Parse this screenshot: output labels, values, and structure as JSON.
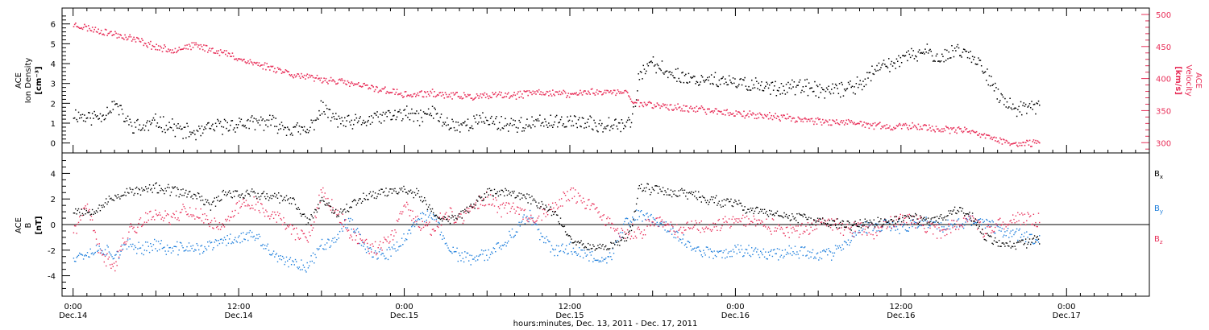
{
  "chart_data": {
    "type": "scatter",
    "title": "",
    "xlabel": "hours:minutes, Dec. 13, 2011 - Dec. 17, 2011",
    "x_range_hours_since_dec14_0000": [
      -0.8,
      78.0
    ],
    "x_ticks": [
      {
        "hour": 0,
        "time": "0:00",
        "date": "Dec.14"
      },
      {
        "hour": 12,
        "time": "12:00",
        "date": "Dec.14"
      },
      {
        "hour": 24,
        "time": "0:00",
        "date": "Dec.15"
      },
      {
        "hour": 36,
        "time": "12:00",
        "date": "Dec.15"
      },
      {
        "hour": 48,
        "time": "0:00",
        "date": "Dec.16"
      },
      {
        "hour": 60,
        "time": "12:00",
        "date": "Dec.16"
      },
      {
        "hour": 72,
        "time": "0:00",
        "date": "Dec.17"
      }
    ],
    "panels": [
      {
        "name": "density-velocity",
        "ylabel_left": [
          "ACE",
          "Ion Density",
          "[cm⁻³]"
        ],
        "ylim_left": [
          -0.5,
          6.8
        ],
        "yticks_left": [
          "0",
          "1",
          "2",
          "3",
          "4",
          "5",
          "6"
        ],
        "ylabel_right": [
          "ACE",
          "Velocity",
          "[km/s]"
        ],
        "ylim_right": [
          284,
          510
        ],
        "yticks_right": [
          "300",
          "350",
          "400",
          "450",
          "500"
        ],
        "right_axis_color": "#e8305a",
        "series": [
          {
            "axis": "left",
            "color": "#000000",
            "x": [
              0,
              1,
              2,
              3,
              4,
              5,
              6,
              7,
              8,
              9,
              10,
              11,
              12,
              13,
              14,
              15,
              16,
              17,
              18,
              19,
              20,
              21,
              22,
              23,
              24,
              25,
              26,
              27,
              28,
              29,
              30,
              31,
              32,
              33,
              34,
              35,
              36,
              37,
              38,
              39,
              40,
              40.5,
              41,
              42,
              43,
              44,
              45,
              46,
              47,
              48,
              49,
              50,
              51,
              52,
              53,
              54,
              55,
              56,
              57,
              58,
              59,
              60,
              61,
              62,
              63,
              64,
              65,
              66,
              67,
              68,
              69,
              70
            ],
            "y": [
              1.5,
              1.3,
              1.4,
              2.0,
              1.0,
              0.8,
              1.1,
              0.9,
              0.6,
              0.5,
              0.8,
              0.9,
              1.0,
              1.0,
              1.1,
              0.9,
              0.7,
              0.6,
              1.8,
              1.2,
              1.0,
              1.1,
              1.3,
              1.4,
              1.5,
              1.3,
              1.6,
              1.0,
              0.9,
              1.1,
              1.2,
              1.0,
              1.0,
              0.9,
              1.1,
              1.0,
              1.2,
              1.0,
              0.9,
              1.1,
              1.0,
              1.2,
              3.5,
              4.0,
              3.6,
              3.4,
              3.2,
              3.3,
              3.1,
              3.0,
              3.0,
              2.9,
              2.8,
              2.9,
              2.8,
              2.7,
              2.6,
              2.8,
              3.0,
              3.6,
              4.0,
              4.2,
              4.5,
              4.6,
              4.3,
              4.8,
              4.4,
              3.8,
              2.4,
              1.8,
              1.7,
              1.9
            ]
          },
          {
            "axis": "right",
            "color": "#e8305a",
            "x": [
              0,
              1,
              2,
              3,
              4,
              5,
              6,
              7,
              8,
              9,
              10,
              11,
              12,
              13,
              14,
              15,
              16,
              17,
              18,
              19,
              20,
              21,
              22,
              23,
              24,
              25,
              26,
              27,
              28,
              29,
              30,
              31,
              32,
              33,
              34,
              35,
              36,
              37,
              38,
              39,
              40,
              40.5,
              41,
              42,
              43,
              44,
              45,
              46,
              47,
              48,
              49,
              50,
              51,
              52,
              53,
              54,
              55,
              56,
              57,
              58,
              59,
              60,
              61,
              62,
              63,
              64,
              65,
              66,
              67,
              68,
              69,
              70
            ],
            "y": [
              485,
              480,
              475,
              470,
              465,
              458,
              450,
              445,
              450,
              452,
              446,
              440,
              432,
              425,
              420,
              414,
              407,
              402,
              400,
              397,
              393,
              389,
              385,
              381,
              375,
              376,
              378,
              375,
              374,
              372,
              373,
              375,
              374,
              378,
              380,
              378,
              376,
              379,
              381,
              379,
              380,
              366,
              363,
              360,
              357,
              355,
              353,
              351,
              349,
              347,
              345,
              343,
              341,
              339,
              337,
              335,
              333,
              331,
              330,
              328,
              326,
              325,
              327,
              324,
              322,
              320,
              318,
              312,
              305,
              300,
              298,
              302
            ]
          }
        ]
      },
      {
        "name": "magnetic-field",
        "ylabel_left": [
          "ACE",
          "B",
          "[nT]"
        ],
        "ylim_left": [
          -5.6,
          5.6
        ],
        "yticks_left": [
          "-4",
          "-2",
          "0",
          "2",
          "4"
        ],
        "series": [
          {
            "name": "Bx",
            "label_main": "B",
            "label_sub": "x",
            "color": "#000000",
            "x": [
              0,
              1,
              2,
              3,
              4,
              5,
              6,
              7,
              8,
              9,
              10,
              11,
              12,
              13,
              14,
              15,
              16,
              17,
              18,
              19,
              20,
              21,
              22,
              23,
              24,
              25,
              26,
              27,
              28,
              29,
              30,
              31,
              32,
              33,
              34,
              35,
              36,
              37,
              38,
              39,
              40,
              40.5,
              41,
              42,
              43,
              44,
              45,
              46,
              47,
              48,
              49,
              50,
              51,
              52,
              53,
              54,
              55,
              56,
              57,
              58,
              59,
              60,
              61,
              62,
              63,
              64,
              65,
              66,
              67,
              68,
              69,
              70
            ],
            "y": [
              1.2,
              1.0,
              1.5,
              2.2,
              2.6,
              2.7,
              2.9,
              2.7,
              2.5,
              2.2,
              1.5,
              2.6,
              2.4,
              2.5,
              2.2,
              2.1,
              1.8,
              0.2,
              2.0,
              1.0,
              1.4,
              2.2,
              2.5,
              2.6,
              2.8,
              2.4,
              1.0,
              0.3,
              0.8,
              1.5,
              2.6,
              2.5,
              2.4,
              2.1,
              1.5,
              0.8,
              -1.0,
              -1.5,
              -1.8,
              -1.6,
              -1.0,
              0.0,
              2.9,
              2.8,
              2.7,
              2.5,
              2.3,
              2.0,
              1.8,
              1.6,
              1.2,
              1.0,
              0.9,
              0.6,
              0.5,
              0.3,
              0.1,
              0.0,
              0.1,
              0.2,
              0.3,
              0.4,
              0.5,
              0.4,
              0.6,
              1.2,
              0.8,
              -0.8,
              -1.5,
              -1.6,
              -1.4,
              -1.2
            ]
          },
          {
            "name": "By",
            "label_main": "B",
            "label_sub": "y",
            "color": "#1f7fdc",
            "x": [
              0,
              1,
              2,
              3,
              4,
              5,
              6,
              7,
              8,
              9,
              10,
              11,
              12,
              13,
              14,
              15,
              16,
              17,
              18,
              19,
              20,
              21,
              22,
              23,
              24,
              25,
              26,
              27,
              28,
              29,
              30,
              31,
              32,
              33,
              34,
              35,
              36,
              37,
              38,
              39,
              40,
              40.5,
              41,
              42,
              43,
              44,
              45,
              46,
              47,
              48,
              49,
              50,
              51,
              52,
              53,
              54,
              55,
              56,
              57,
              58,
              59,
              60,
              61,
              62,
              63,
              64,
              65,
              66,
              67,
              68,
              69,
              70
            ],
            "y": [
              -2.4,
              -2.2,
              -1.8,
              -2.3,
              -1.6,
              -1.8,
              -1.5,
              -2.0,
              -1.7,
              -1.9,
              -1.6,
              -1.2,
              -1.0,
              -0.8,
              -1.8,
              -2.8,
              -3.0,
              -3.2,
              -1.5,
              -1.0,
              0.5,
              -1.5,
              -2.5,
              -2.2,
              -1.0,
              0.3,
              1.0,
              -1.5,
              -2.5,
              -2.7,
              -2.3,
              -1.5,
              -0.5,
              0.8,
              -1.2,
              -2.0,
              -1.8,
              -2.2,
              -2.6,
              -2.4,
              0.2,
              0.5,
              0.8,
              0.5,
              -0.2,
              -1.0,
              -2.0,
              -2.1,
              -2.2,
              -2.0,
              -2.0,
              -2.1,
              -2.2,
              -2.0,
              -2.1,
              -2.3,
              -2.2,
              -1.5,
              -0.3,
              -0.2,
              0.0,
              -0.3,
              0.0,
              0.3,
              -0.2,
              0.0,
              0.4,
              0.2,
              -0.3,
              -0.6,
              -0.9,
              -1.0
            ]
          },
          {
            "name": "Bz",
            "label_main": "B",
            "label_sub": "z",
            "color": "#e8305a",
            "x": [
              0,
              1,
              2,
              3,
              4,
              5,
              6,
              7,
              8,
              9,
              10,
              11,
              12,
              13,
              14,
              15,
              16,
              17,
              18,
              19,
              20,
              21,
              22,
              23,
              24,
              25,
              26,
              27,
              28,
              29,
              30,
              31,
              32,
              33,
              34,
              35,
              36,
              37,
              38,
              39,
              40,
              40.5,
              41,
              42,
              43,
              44,
              45,
              46,
              47,
              48,
              49,
              50,
              51,
              52,
              53,
              54,
              55,
              56,
              57,
              58,
              59,
              60,
              61,
              62,
              63,
              64,
              65,
              66,
              67,
              68,
              69,
              70
            ],
            "y": [
              -0.5,
              1.5,
              -2.5,
              -3.0,
              -0.5,
              0.3,
              1.0,
              0.5,
              1.2,
              0.8,
              0.2,
              0.0,
              1.5,
              1.8,
              1.0,
              0.5,
              -0.5,
              -1.2,
              2.5,
              1.0,
              -0.5,
              -1.5,
              -2.0,
              -1.0,
              1.5,
              0.0,
              -0.5,
              1.0,
              0.5,
              1.5,
              2.0,
              1.2,
              1.5,
              0.5,
              1.0,
              1.5,
              2.5,
              1.8,
              1.0,
              0.0,
              -1.0,
              -0.5,
              -0.8,
              0.5,
              0.0,
              -0.5,
              0.0,
              -0.3,
              0.2,
              0.5,
              0.3,
              0.0,
              -0.2,
              -0.5,
              -0.3,
              -0.1,
              0.0,
              -0.4,
              -0.2,
              -0.5,
              0.0,
              0.5,
              0.3,
              -0.2,
              -0.6,
              0.2,
              0.5,
              -0.5,
              0.0,
              0.3,
              0.5,
              0.4
            ]
          }
        ]
      }
    ]
  }
}
